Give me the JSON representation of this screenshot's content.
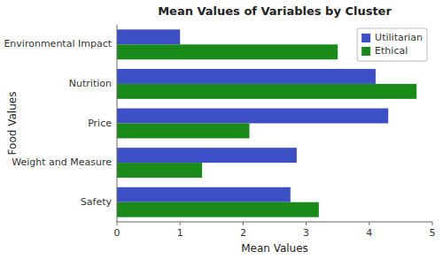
{
  "chart_data": {
    "type": "bar",
    "orientation": "horizontal",
    "title": "Mean Values of Variables by Cluster",
    "xlabel": "Mean Values",
    "ylabel": "Food Values",
    "categories": [
      "Environmental Impact",
      "Nutrition",
      "Price",
      "Weight and Measure",
      "Safety"
    ],
    "series": [
      {
        "name": "Utilitarian",
        "color": "#3d4fc4",
        "values": [
          1.0,
          4.1,
          4.3,
          2.85,
          2.75
        ]
      },
      {
        "name": "Ethical",
        "color": "#1a8a1a",
        "values": [
          3.5,
          4.75,
          2.1,
          1.35,
          3.2
        ]
      }
    ],
    "xlim": [
      0,
      5
    ],
    "xticks": [
      0,
      1,
      2,
      3,
      4,
      5
    ],
    "legend": "upper right"
  }
}
